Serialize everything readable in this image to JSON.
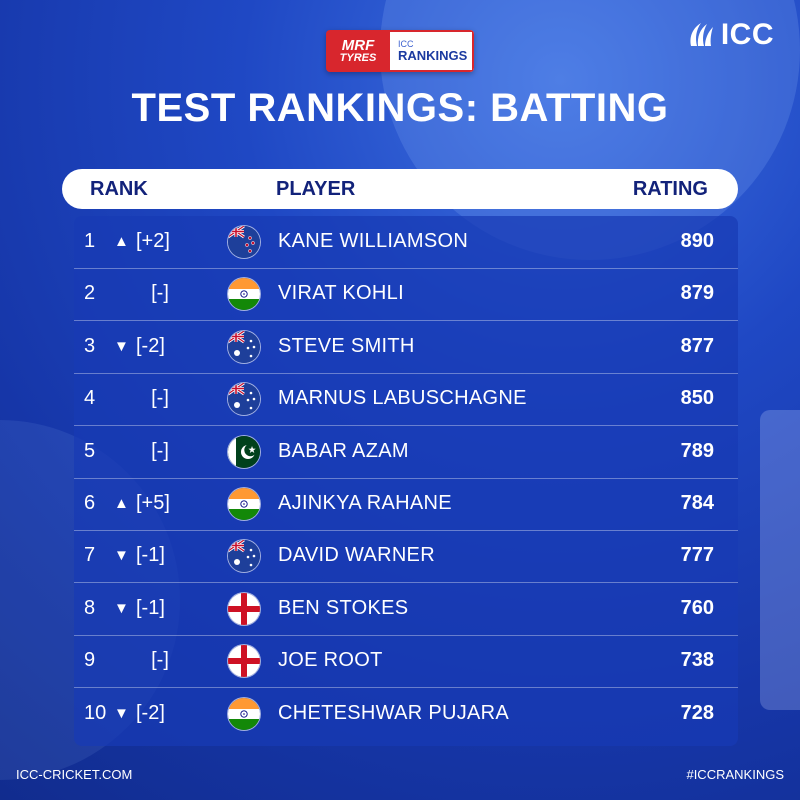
{
  "logo": {
    "text": "ICC"
  },
  "sponsor": {
    "brand_line1": "MRF",
    "brand_line2": "TYRES",
    "rank_line1": "ICC",
    "rank_line2": "RANKINGS"
  },
  "title": "TEST RANKINGS: BATTING",
  "header": {
    "rank": "RANK",
    "player": "PLAYER",
    "rating": "RATING"
  },
  "rows": [
    {
      "rank": "1",
      "arrow": "▲",
      "move": "[+2]",
      "flag": "nz-flag-icon",
      "country": "NZL",
      "player": "KANE WILLIAMSON",
      "rating": "890"
    },
    {
      "rank": "2",
      "arrow": "",
      "move": "[-]",
      "flag": "ind-flag-icon",
      "country": "IND",
      "player": "VIRAT KOHLI",
      "rating": "879"
    },
    {
      "rank": "3",
      "arrow": "▼",
      "move": "[-2]",
      "flag": "aus-flag-icon",
      "country": "AUS",
      "player": "STEVE SMITH",
      "rating": "877"
    },
    {
      "rank": "4",
      "arrow": "",
      "move": "[-]",
      "flag": "aus-flag-icon",
      "country": "AUS",
      "player": "MARNUS LABUSCHAGNE",
      "rating": "850"
    },
    {
      "rank": "5",
      "arrow": "",
      "move": "[-]",
      "flag": "pak-flag-icon",
      "country": "PAK",
      "player": "BABAR AZAM",
      "rating": "789"
    },
    {
      "rank": "6",
      "arrow": "▲",
      "move": "[+5]",
      "flag": "ind-flag-icon",
      "country": "IND",
      "player": "AJINKYA RAHANE",
      "rating": "784"
    },
    {
      "rank": "7",
      "arrow": "▼",
      "move": "[-1]",
      "flag": "aus-flag-icon",
      "country": "AUS",
      "player": "DAVID WARNER",
      "rating": "777"
    },
    {
      "rank": "8",
      "arrow": "▼",
      "move": "[-1]",
      "flag": "eng-flag-icon",
      "country": "ENG",
      "player": "BEN STOKES",
      "rating": "760"
    },
    {
      "rank": "9",
      "arrow": "",
      "move": "[-]",
      "flag": "eng-flag-icon",
      "country": "ENG",
      "player": "JOE ROOT",
      "rating": "738"
    },
    {
      "rank": "10",
      "arrow": "▼",
      "move": "[-2]",
      "flag": "ind-flag-icon",
      "country": "IND",
      "player": "CHETESHWAR PUJARA",
      "rating": "728"
    }
  ],
  "footer": {
    "left": "ICC-CRICKET.COM",
    "right": "#ICCRANKINGS"
  },
  "colors": {
    "background": "#1f48c4",
    "header_text": "#12227a",
    "sponsor_red": "#d8262d"
  }
}
